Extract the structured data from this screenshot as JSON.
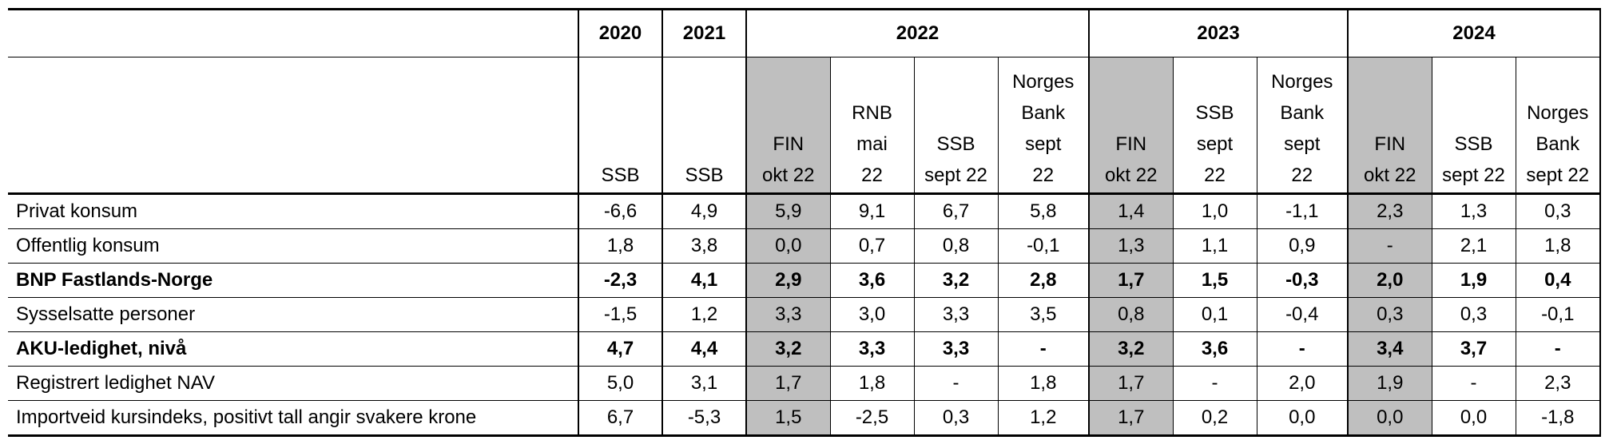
{
  "header": {
    "years": [
      "2020",
      "2021",
      "2022",
      "2023",
      "2024"
    ],
    "sources": [
      [
        "SSB"
      ],
      [
        "SSB"
      ],
      [
        "FIN",
        "okt 22"
      ],
      [
        "RNB",
        "mai",
        "22"
      ],
      [
        "SSB",
        "sept 22"
      ],
      [
        "Norges",
        "Bank",
        "sept",
        "22"
      ],
      [
        "FIN",
        "okt 22"
      ],
      [
        "SSB",
        "sept",
        "22"
      ],
      [
        "Norges",
        "Bank",
        "sept",
        "22"
      ],
      [
        "FIN",
        "okt 22"
      ],
      [
        "SSB",
        "sept 22"
      ],
      [
        "Norges",
        "Bank",
        "sept 22"
      ]
    ]
  },
  "rows": [
    {
      "label": "Privat konsum",
      "bold": false,
      "values": [
        "-6,6",
        "4,9",
        "5,9",
        "9,1",
        "6,7",
        "5,8",
        "1,4",
        "1,0",
        "-1,1",
        "2,3",
        "1,3",
        "0,3"
      ]
    },
    {
      "label": "Offentlig konsum",
      "bold": false,
      "values": [
        "1,8",
        "3,8",
        "0,0",
        "0,7",
        "0,8",
        "-0,1",
        "1,3",
        "1,1",
        "0,9",
        "-",
        "2,1",
        "1,8"
      ]
    },
    {
      "label": "BNP Fastlands-Norge",
      "bold": true,
      "values": [
        "-2,3",
        "4,1",
        "2,9",
        "3,6",
        "3,2",
        "2,8",
        "1,7",
        "1,5",
        "-0,3",
        "2,0",
        "1,9",
        "0,4"
      ]
    },
    {
      "label": "Sysselsatte personer",
      "bold": false,
      "values": [
        "-1,5",
        "1,2",
        "3,3",
        "3,0",
        "3,3",
        "3,5",
        "0,8",
        "0,1",
        "-0,4",
        "0,3",
        "0,3",
        "-0,1"
      ]
    },
    {
      "label": "AKU-ledighet, nivå",
      "bold": true,
      "values": [
        "4,7",
        "4,4",
        "3,2",
        "3,3",
        "3,3",
        "-",
        "3,2",
        "3,6",
        "-",
        "3,4",
        "3,7",
        "-"
      ]
    },
    {
      "label": "Registrert ledighet NAV",
      "bold": false,
      "values": [
        "5,0",
        "3,1",
        "1,7",
        "1,8",
        "-",
        "1,8",
        "1,7",
        "-",
        "2,0",
        "1,9",
        "-",
        "2,3"
      ]
    },
    {
      "label": "Importveid kursindeks, positivt tall angir svakere krone",
      "bold": false,
      "values": [
        "6,7",
        "-5,3",
        "1,5",
        "-2,5",
        "0,3",
        "1,2",
        "1,7",
        "0,2",
        "0,0",
        "0,0",
        "0,0",
        "-1,8"
      ]
    }
  ]
}
